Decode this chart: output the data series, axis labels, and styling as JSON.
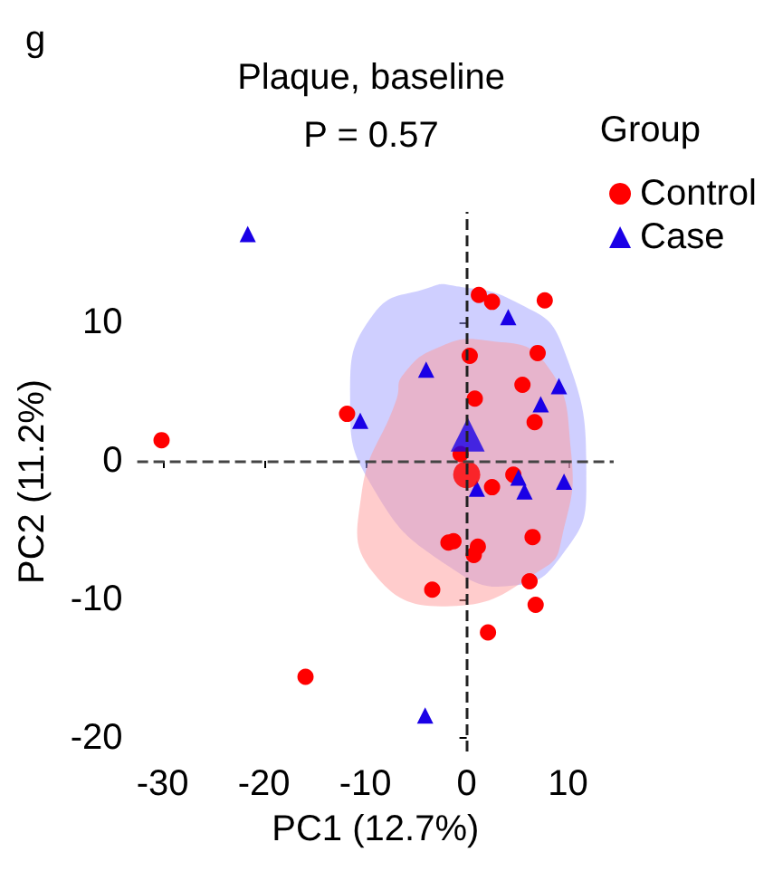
{
  "chart_data": {
    "type": "scatter",
    "title": "Plaque, baseline",
    "subtitle": "P = 0.57",
    "xlabel": "PC1 (12.7%)",
    "ylabel": "PC2 (11.2%)",
    "legend_title": "Group",
    "annotations": [
      "g"
    ],
    "xlim": [
      -32.5,
      14.5
    ],
    "ylim": [
      -21,
      18
    ],
    "xticks": [
      -30,
      -20,
      -10,
      0,
      10
    ],
    "yticks": [
      -20,
      -10,
      0,
      10
    ],
    "grid": false,
    "legend": "top right",
    "ref_lines": [
      {
        "axis": "x",
        "value": 0,
        "color": "#222222",
        "line_style": "dashed"
      },
      {
        "axis": "y",
        "value": 0,
        "color": "#444444",
        "line_style": "dashed"
      }
    ],
    "series": [
      {
        "type": "area",
        "color": "#a0a0ff",
        "x": [
          -1.6,
          4.8,
          9.4,
          11.8,
          9.4,
          4.8,
          -1.6,
          -9.2,
          -11.5,
          -9.2,
          -3.4
        ],
        "values": [
          12.7,
          11.5,
          8.4,
          -2.0,
          -6.8,
          -9.0,
          -7.7,
          -2.0,
          4.5,
          10.6,
          12.6
        ]
      },
      {
        "type": "area",
        "color": "#ff9a9a",
        "x": [
          1.9,
          7.7,
          10.3,
          9.4,
          7.7,
          -1.6,
          -9.2,
          -10.4,
          -6.9,
          -6.3,
          -2.8
        ],
        "values": [
          8.7,
          7.1,
          0.6,
          -5.5,
          -7.7,
          -10.5,
          -8.1,
          -2.5,
          4.5,
          6.2,
          8.2
        ]
      },
      {
        "name": "Control",
        "marker": "circle",
        "color": "#ff0000",
        "x": [
          -30.1,
          -11.8,
          -3.4,
          -15.9,
          -1.8,
          -1.3,
          -0.6,
          1.2,
          2.5,
          7.7,
          7.0,
          0.3,
          5.5,
          0.8,
          6.7,
          2.5,
          4.6,
          6.5,
          1.1,
          0.7,
          6.2,
          6.8,
          2.1
        ],
        "values": [
          1.5,
          3.4,
          -9.3,
          -15.6,
          -5.9,
          -5.8,
          0.5,
          12.0,
          11.5,
          11.6,
          7.8,
          7.6,
          5.5,
          4.5,
          2.8,
          -1.9,
          -1.0,
          -5.5,
          -6.2,
          -6.8,
          -8.7,
          -10.4,
          -12.4
        ]
      },
      {
        "name": "Case",
        "marker": "triangle",
        "color": "#1a00e6",
        "x": [
          -21.6,
          -4.0,
          -10.5,
          -4.1,
          4.1,
          9.1,
          7.3,
          1.0,
          5.1,
          5.7,
          9.6
        ],
        "values": [
          16.4,
          6.6,
          2.9,
          -18.4,
          10.4,
          5.4,
          4.1,
          -2.0,
          -1.2,
          -2.2,
          -1.5
        ]
      },
      {
        "type": "bubble",
        "marker": "triangle",
        "color": "#1a00e6",
        "x": [
          0.1
        ],
        "values": [
          1.9
        ],
        "sizes": [
          1
        ]
      },
      {
        "type": "bubble",
        "marker": "circle",
        "color": "#ff0000",
        "x": [
          0
        ],
        "values": [
          -1.0
        ],
        "sizes": [
          1
        ]
      }
    ]
  }
}
